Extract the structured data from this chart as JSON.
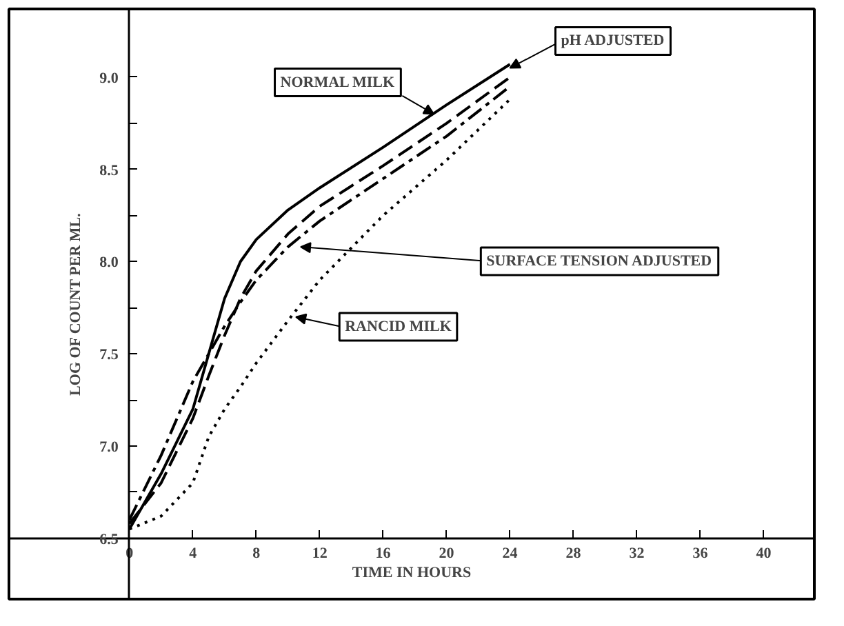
{
  "chart_data": {
    "type": "line",
    "xlabel": "TIME IN HOURS",
    "ylabel": "LOG OF COUNT PER ML.",
    "xlim": [
      -7.6,
      43.2
    ],
    "ylim": [
      6.17,
      9.37
    ],
    "xticks": [
      0,
      4,
      8,
      12,
      16,
      20,
      24,
      28,
      32,
      36,
      40
    ],
    "yticks": [
      6.5,
      {
        "value": 6.75,
        "label": null
      },
      {
        "value": 7,
        "label": "7.0"
      },
      {
        "value": 7.25,
        "label": null
      },
      7.5,
      {
        "value": 7.75,
        "label": null
      },
      {
        "value": 8,
        "label": "8.0"
      },
      {
        "value": 8.25,
        "label": null
      },
      8.5,
      {
        "value": 8.75,
        "label": null
      },
      {
        "value": 9,
        "label": "9.0"
      }
    ],
    "x": [
      0,
      2,
      4,
      5,
      6,
      7,
      8,
      10,
      12,
      16,
      20,
      24
    ],
    "series": [
      {
        "color": "#000000",
        "line_style": "solid",
        "values": [
          6.55,
          6.85,
          7.2,
          7.5,
          7.8,
          8.0,
          8.12,
          8.28,
          8.4,
          8.62,
          8.85,
          9.07
        ]
      },
      {
        "color": "#000000",
        "line_style": "dashed",
        "values": [
          6.58,
          6.8,
          7.15,
          7.38,
          7.6,
          7.8,
          7.95,
          8.15,
          8.3,
          8.52,
          8.75,
          9.0
        ]
      },
      {
        "color": "#000000",
        "line_style": "dashdot",
        "values": [
          6.6,
          6.95,
          7.35,
          7.5,
          7.65,
          7.78,
          7.9,
          8.08,
          8.22,
          8.45,
          8.68,
          8.95
        ]
      },
      {
        "color": "#000000",
        "line_style": "dotted",
        "values": [
          6.55,
          6.62,
          6.8,
          7.05,
          7.2,
          7.32,
          7.45,
          7.68,
          7.9,
          8.25,
          8.55,
          8.88
        ]
      }
    ],
    "annotations": [
      {
        "text": "NORMAL MILK",
        "x": 19.2,
        "y": 8.8
      },
      {
        "text": "pH ADJUSTED",
        "x": 24,
        "y": 9.05
      },
      {
        "text": "SURFACE TENSION ADJUSTED",
        "x": 10.8,
        "y": 8.08
      },
      {
        "text": "RANCID MILK",
        "x": 10.5,
        "y": 7.7
      }
    ]
  }
}
